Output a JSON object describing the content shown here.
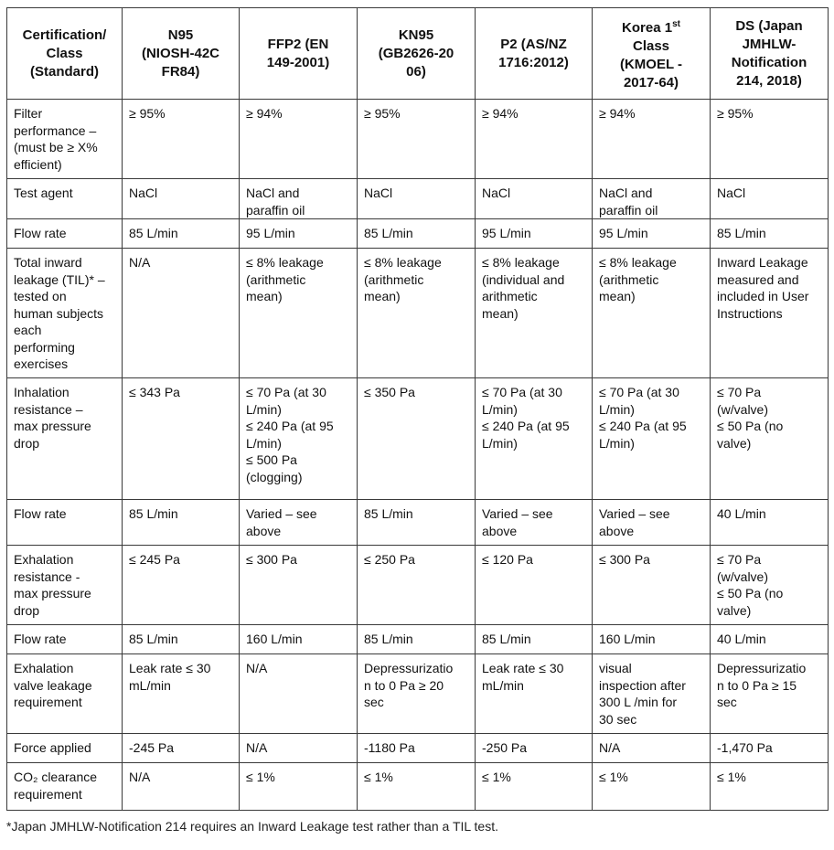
{
  "table": {
    "headers": [
      [
        "Certification/",
        "Class",
        "(Standard)"
      ],
      [
        "N95",
        "(NIOSH-42C",
        "FR84)"
      ],
      [
        "FFP2 (EN",
        "149-2001)"
      ],
      [
        "KN95",
        "(GB2626-20",
        "06)"
      ],
      [
        "P2 (AS/NZ",
        "1716:2012)"
      ],
      [
        "Korea 1st",
        "Class",
        "(KMOEL -",
        "2017-64)"
      ],
      [
        "DS (Japan",
        "JMHLW-",
        "Notification",
        "214, 2018)"
      ]
    ],
    "header_superscript": {
      "col": 5,
      "line": 0,
      "base": "Korea 1",
      "sup": "st"
    },
    "rows": [
      {
        "label": [
          "Filter",
          "performance –",
          "(must be ≥ X%",
          "efficient)"
        ],
        "cells": [
          [
            "≥ 95%"
          ],
          [
            "≥ 94%"
          ],
          [
            "≥ 95%"
          ],
          [
            "≥ 94%"
          ],
          [
            "≥ 94%"
          ],
          [
            "≥ 95%"
          ]
        ]
      },
      {
        "label": [
          "Test agent"
        ],
        "cells": [
          [
            "NaCl"
          ],
          [
            "NaCl and",
            "paraffin oil"
          ],
          [
            "NaCl"
          ],
          [
            "NaCl"
          ],
          [
            "NaCl and",
            "paraffin oil"
          ],
          [
            "NaCl"
          ]
        ]
      },
      {
        "label": [
          "Flow rate"
        ],
        "cells": [
          [
            "85 L/min"
          ],
          [
            "95 L/min"
          ],
          [
            "85 L/min"
          ],
          [
            "95 L/min"
          ],
          [
            "95 L/min"
          ],
          [
            "85 L/min"
          ]
        ]
      },
      {
        "label": [
          "Total inward",
          "leakage (TIL)* –",
          "tested on",
          "human subjects",
          "each",
          "performing",
          "exercises"
        ],
        "cells": [
          [
            "N/A"
          ],
          [
            "≤ 8% leakage",
            "(arithmetic",
            "mean)"
          ],
          [
            "≤ 8% leakage",
            "(arithmetic",
            "mean)"
          ],
          [
            "≤ 8% leakage",
            "(individual and",
            "arithmetic",
            "mean)"
          ],
          [
            "≤ 8% leakage",
            "(arithmetic",
            "mean)"
          ],
          [
            "Inward Leakage",
            "measured and",
            "included in User",
            "Instructions"
          ]
        ]
      },
      {
        "label": [
          "Inhalation",
          "resistance –",
          "max pressure",
          "drop"
        ],
        "cells": [
          [
            "≤ 343 Pa"
          ],
          [
            "≤ 70 Pa (at 30",
            "L/min)",
            "≤ 240 Pa (at 95",
            "L/min)",
            "≤ 500 Pa",
            "(clogging)"
          ],
          [
            "≤ 350 Pa"
          ],
          [
            "≤ 70 Pa (at 30",
            "L/min)",
            "≤ 240 Pa (at 95",
            "L/min)"
          ],
          [
            "≤ 70 Pa (at 30",
            "L/min)",
            "≤ 240 Pa (at 95",
            "L/min)"
          ],
          [
            "≤ 70 Pa",
            "(w/valve)",
            "≤ 50 Pa (no",
            "valve)"
          ]
        ]
      },
      {
        "label": [
          "Flow rate"
        ],
        "cells": [
          [
            "85 L/min"
          ],
          [
            "Varied – see",
            "above"
          ],
          [
            "85 L/min"
          ],
          [
            "Varied – see",
            "above"
          ],
          [
            "Varied – see",
            "above"
          ],
          [
            "40 L/min"
          ]
        ]
      },
      {
        "label": [
          "Exhalation",
          "resistance -",
          "max pressure",
          "drop"
        ],
        "cells": [
          [
            "≤ 245 Pa"
          ],
          [
            "≤ 300 Pa"
          ],
          [
            "≤ 250 Pa"
          ],
          [
            "≤ 120 Pa"
          ],
          [
            "≤ 300 Pa"
          ],
          [
            "≤ 70 Pa",
            "(w/valve)",
            "≤ 50 Pa (no",
            "valve)"
          ]
        ]
      },
      {
        "label": [
          "Flow rate"
        ],
        "cells": [
          [
            "85 L/min"
          ],
          [
            "160 L/min"
          ],
          [
            "85 L/min"
          ],
          [
            "85 L/min"
          ],
          [
            "160 L/min"
          ],
          [
            "40 L/min"
          ]
        ]
      },
      {
        "label": [
          "Exhalation",
          "valve leakage",
          "requirement"
        ],
        "cells": [
          [
            "Leak rate ≤ 30",
            "mL/min"
          ],
          [
            "N/A"
          ],
          [
            "Depressurizatio",
            "n to 0 Pa ≥ 20",
            "sec"
          ],
          [
            "Leak rate ≤ 30",
            "mL/min"
          ],
          [
            "visual",
            "inspection after",
            "300 L /min for",
            "30 sec"
          ],
          [
            "Depressurizatio",
            "n to 0 Pa ≥ 15",
            "sec"
          ]
        ]
      },
      {
        "label": [
          "Force applied"
        ],
        "cells": [
          [
            "-245 Pa"
          ],
          [
            "N/A"
          ],
          [
            "-1180 Pa"
          ],
          [
            "-250 Pa"
          ],
          [
            "N/A"
          ],
          [
            "-1,470 Pa"
          ]
        ]
      },
      {
        "label": [
          "CO₂ clearance",
          "requirement"
        ],
        "cells": [
          [
            "N/A"
          ],
          [
            "≤ 1%"
          ],
          [
            "≤ 1%"
          ],
          [
            "≤ 1%"
          ],
          [
            "≤ 1%"
          ],
          [
            "≤ 1%"
          ]
        ]
      }
    ]
  },
  "footnote": "*Japan JMHLW-Notification 214 requires an Inward Leakage test rather than a TIL test."
}
